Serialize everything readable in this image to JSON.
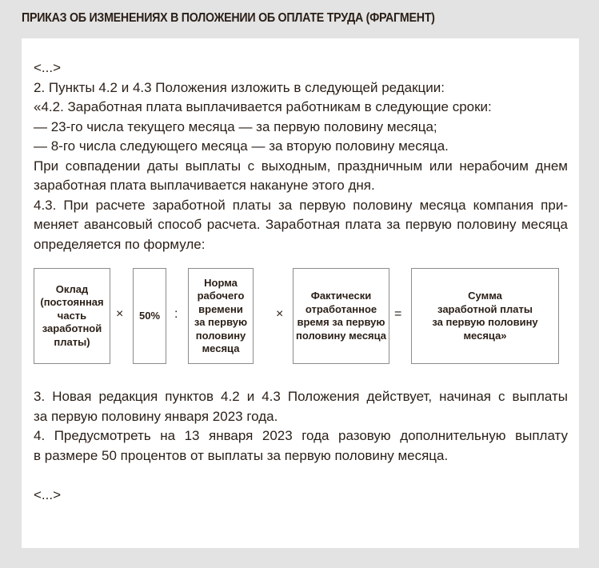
{
  "title": "ПРИКАЗ ОБ ИЗМЕНЕНИЯХ В ПОЛОЖЕНИИ ОБ ОПЛАТЕ ТРУДА (ФРАГМЕНТ)",
  "top_lines": [
    {
      "text": "<...>",
      "justify": false
    },
    {
      "text": "2. Пункты 4.2 и 4.3 Положения изложить в следующей редакции:",
      "justify": false
    },
    {
      "text": "«4.2. Заработная плата выплачивается работникам в следующие сроки:",
      "justify": false
    },
    {
      "text": "— 23-го числа текущего месяца — за первую половину месяца;",
      "justify": false
    },
    {
      "text": "— 8-го числа следующего месяца — за вторую половину месяца.",
      "justify": false
    },
    {
      "text": "При совпадении даты выплаты с выходным, праздничным или нерабочим днем",
      "justify": true
    },
    {
      "text": "заработная плата выплачивается накануне этого дня.",
      "justify": false
    },
    {
      "text": "4.3. При расчете заработной платы за первую половину месяца компания при-",
      "justify": true
    },
    {
      "text": "меняет авансовый способ расчета. Заработная плата за первую половину месяца",
      "justify": true
    },
    {
      "text": "определяется по формуле:",
      "justify": false
    }
  ],
  "formula": {
    "boxes": [
      "Оклад\n(постоянная\nчасть\nзаработной\nплаты)",
      "50%",
      "Норма\nрабочего\nвремени\nза первую\nполовину\nмесяца",
      "Фактически\nотработанное\nвремя за первую\nполовину месяца",
      "Сумма\nзаработной платы\nза первую половину\nмесяца»"
    ],
    "operators": [
      "×",
      ":",
      "×",
      "="
    ]
  },
  "bottom_lines": [
    {
      "text": "3. Новая редакция пунктов 4.2 и 4.3 Положения действует, начиная с выплаты",
      "justify": true
    },
    {
      "text": "за первую половину января 2023 года.",
      "justify": false
    },
    {
      "text": "4. Предусмотреть на 13 января 2023 года разовую дополнительную выплату",
      "justify": true
    },
    {
      "text": "в размере 50 процентов от выплаты за первую половину месяца.",
      "justify": false
    },
    {
      "text": "",
      "justify": false
    },
    {
      "text": "<...>",
      "justify": false
    }
  ]
}
